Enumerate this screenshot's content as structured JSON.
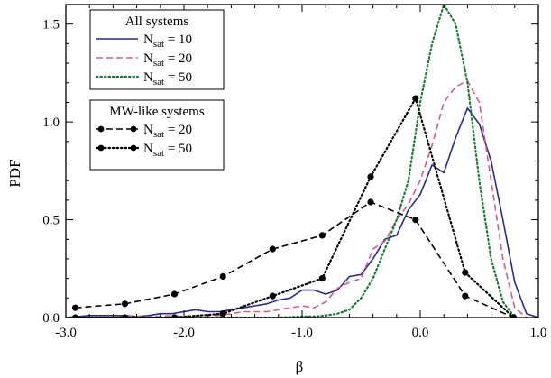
{
  "chart_data": {
    "type": "line",
    "title": "",
    "xlabel": "β",
    "ylabel": "PDF",
    "xlim": [
      -3.0,
      1.0
    ],
    "ylim": [
      0.0,
      1.6
    ],
    "x_ticks": [
      "-3.0",
      "-2.0",
      "-1.0",
      "0.0",
      "1.0"
    ],
    "x_tick_values": [
      -3.0,
      -2.0,
      -1.0,
      0.0,
      1.0
    ],
    "y_ticks": [
      "0.0",
      "0.5",
      "1.0",
      "1.5"
    ],
    "y_tick_values": [
      0.0,
      0.5,
      1.0,
      1.5
    ],
    "legend_placement": "top-left",
    "legends": [
      {
        "title": "All systems",
        "entries": [
          {
            "base": "N",
            "sub": "sat",
            "rest": " = 10",
            "series": 0
          },
          {
            "base": "N",
            "sub": "sat",
            "rest": " = 20",
            "series": 1
          },
          {
            "base": "N",
            "sub": "sat",
            "rest": " = 50",
            "series": 2
          }
        ]
      },
      {
        "title": "MW-like systems",
        "entries": [
          {
            "base": "N",
            "sub": "sat",
            "rest": " = 20",
            "series": 3
          },
          {
            "base": "N",
            "sub": "sat",
            "rest": " = 50",
            "series": 4
          }
        ]
      }
    ],
    "series": [
      {
        "group": "All systems",
        "nsat": 10,
        "color": "#2a2a8c",
        "dash": "solid",
        "markers": false,
        "x": [
          -3.0,
          -2.9,
          -2.8,
          -2.7,
          -2.6,
          -2.5,
          -2.4,
          -2.3,
          -2.2,
          -2.1,
          -2.0,
          -1.9,
          -1.8,
          -1.7,
          -1.6,
          -1.5,
          -1.4,
          -1.3,
          -1.2,
          -1.1,
          -1.0,
          -0.9,
          -0.8,
          -0.7,
          -0.6,
          -0.5,
          -0.4,
          -0.3,
          -0.2,
          -0.1,
          0.0,
          0.1,
          0.2,
          0.3,
          0.4,
          0.5,
          0.6,
          0.7,
          0.8,
          0.9,
          1.0
        ],
        "y": [
          0.0,
          0.005,
          0.01,
          0.01,
          0.01,
          0.01,
          0.005,
          0.01,
          0.02,
          0.02,
          0.03,
          0.04,
          0.03,
          0.03,
          0.04,
          0.05,
          0.06,
          0.07,
          0.09,
          0.1,
          0.14,
          0.14,
          0.12,
          0.14,
          0.21,
          0.22,
          0.3,
          0.4,
          0.42,
          0.55,
          0.63,
          0.78,
          0.74,
          0.92,
          1.07,
          0.99,
          0.8,
          0.5,
          0.18,
          0.02,
          0.0
        ]
      },
      {
        "group": "All systems",
        "nsat": 20,
        "color": "#d45f7f",
        "dash": "dashed",
        "markers": false,
        "x": [
          -3.0,
          -2.9,
          -2.8,
          -2.7,
          -2.6,
          -2.5,
          -2.4,
          -2.3,
          -2.2,
          -2.1,
          -2.0,
          -1.9,
          -1.8,
          -1.7,
          -1.6,
          -1.5,
          -1.4,
          -1.3,
          -1.2,
          -1.1,
          -1.0,
          -0.9,
          -0.8,
          -0.7,
          -0.6,
          -0.5,
          -0.4,
          -0.3,
          -0.2,
          -0.1,
          0.0,
          0.1,
          0.2,
          0.3,
          0.4,
          0.5,
          0.6,
          0.7,
          0.8,
          0.9
        ],
        "y": [
          0.0,
          0.0,
          0.0,
          0.0,
          0.0,
          0.005,
          0.005,
          0.005,
          0.005,
          0.01,
          0.005,
          0.01,
          0.01,
          0.01,
          0.02,
          0.03,
          0.03,
          0.03,
          0.04,
          0.05,
          0.06,
          0.05,
          0.08,
          0.15,
          0.18,
          0.2,
          0.35,
          0.39,
          0.5,
          0.58,
          0.7,
          0.88,
          1.1,
          1.18,
          1.21,
          1.1,
          0.7,
          0.3,
          0.05,
          0.0
        ]
      },
      {
        "group": "All systems",
        "nsat": 50,
        "color": "#1e7a3c",
        "dash": "dotted",
        "markers": false,
        "x": [
          -3.0,
          -2.0,
          -1.5,
          -1.2,
          -1.0,
          -0.9,
          -0.8,
          -0.7,
          -0.6,
          -0.5,
          -0.4,
          -0.3,
          -0.2,
          -0.1,
          0.0,
          0.1,
          0.2,
          0.3,
          0.4,
          0.5,
          0.6,
          0.7,
          0.8
        ],
        "y": [
          0.0,
          0.0,
          0.0,
          0.0,
          0.005,
          0.005,
          0.01,
          0.02,
          0.04,
          0.1,
          0.2,
          0.35,
          0.5,
          0.7,
          1.1,
          1.4,
          1.6,
          1.5,
          1.2,
          0.7,
          0.3,
          0.08,
          0.0
        ]
      },
      {
        "group": "MW-like systems",
        "nsat": 20,
        "color": "#000000",
        "dash": "dashed",
        "markers": true,
        "x": [
          -2.92,
          -2.5,
          -2.08,
          -1.67,
          -1.25,
          -0.83,
          -0.42,
          -0.04,
          0.38,
          0.79
        ],
        "y": [
          0.05,
          0.07,
          0.12,
          0.21,
          0.35,
          0.42,
          0.59,
          0.5,
          0.11,
          0.0
        ]
      },
      {
        "group": "MW-like systems",
        "nsat": 50,
        "color": "#000000",
        "dash": "dotted",
        "markers": true,
        "x": [
          -2.92,
          -2.5,
          -2.08,
          -1.67,
          -1.25,
          -0.83,
          -0.42,
          -0.04,
          0.38,
          0.79
        ],
        "y": [
          0.0,
          0.0,
          0.0,
          0.02,
          0.11,
          0.2,
          0.72,
          1.12,
          0.23,
          0.0
        ]
      }
    ]
  }
}
